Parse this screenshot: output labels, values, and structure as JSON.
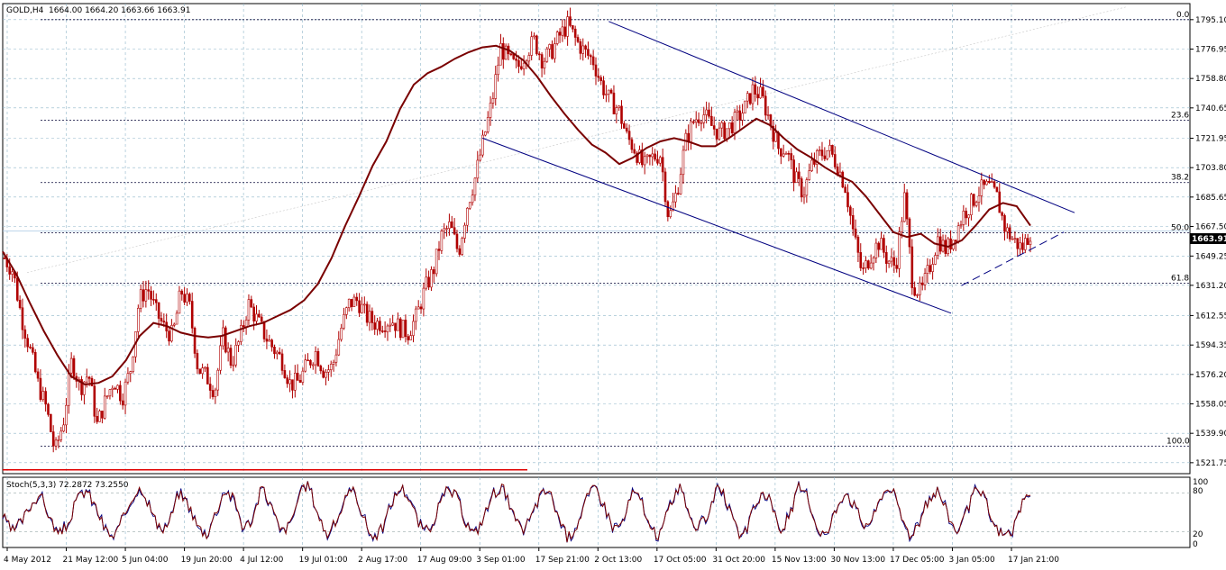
{
  "header": {
    "symbol": "GOLD,H4",
    "ohlc": "1664.00 1664.20 1663.66 1663.91"
  },
  "current_price_label": "1663.91",
  "indicator": {
    "label": "Stoch(5,3,3) 72.2872 73.2550",
    "levels": [
      "100",
      "80",
      "20",
      "0"
    ]
  },
  "colors": {
    "grid": "#8fb6c9",
    "candle": "#b00000",
    "ma": "#7a0000",
    "channel": "#000080",
    "fib": "#000033",
    "stoch_main": "#7a0000",
    "stoch_signal": "#000080",
    "rng_bar": "#e00000"
  },
  "chart_data": [
    {
      "type": "candlestick",
      "title": "GOLD,H4",
      "ylim": [
        1515,
        1805
      ],
      "yticks": [
        "1795.10",
        "1776.95",
        "1758.80",
        "1740.65",
        "1721.95",
        "1703.80",
        "1685.65",
        "1667.50",
        "1649.25",
        "1631.20",
        "1612.55",
        "1594.35",
        "1576.20",
        "1558.05",
        "1539.90",
        "1521.75"
      ],
      "xticks": [
        "4 May 2012",
        "21 May 12:00",
        "5 Jun 04:00",
        "19 Jun 20:00",
        "4 Jul 12:00",
        "19 Jul 01:00",
        "2 Aug 17:00",
        "17 Aug 09:00",
        "3 Sep 01:00",
        "17 Sep 21:00",
        "2 Oct 13:00",
        "17 Oct 05:00",
        "31 Oct 20:00",
        "15 Nov 13:00",
        "30 Nov 13:00",
        "17 Dec 05:00",
        "3 Jan 05:00",
        "17 Jan 21:00"
      ],
      "price_path": [
        1648,
        1640,
        1612,
        1592,
        1570,
        1555,
        1528,
        1547,
        1585,
        1568,
        1577,
        1545,
        1560,
        1573,
        1562,
        1580,
        1622,
        1630,
        1615,
        1605,
        1600,
        1628,
        1618,
        1580,
        1575,
        1566,
        1600,
        1583,
        1598,
        1620,
        1610,
        1600,
        1592,
        1585,
        1570,
        1572,
        1582,
        1590,
        1578,
        1581,
        1604,
        1620,
        1622,
        1612,
        1608,
        1608,
        1610,
        1605,
        1602,
        1612,
        1629,
        1640,
        1662,
        1668,
        1651,
        1680,
        1698,
        1722,
        1745,
        1778,
        1770,
        1765,
        1775,
        1782,
        1770,
        1775,
        1785,
        1792,
        1782,
        1775,
        1770,
        1755,
        1745,
        1740,
        1723,
        1715,
        1704,
        1710,
        1712,
        1672,
        1690,
        1720,
        1733,
        1738,
        1730,
        1725,
        1728,
        1733,
        1740,
        1752,
        1748,
        1733,
        1716,
        1715,
        1697,
        1688,
        1705,
        1712,
        1715,
        1706,
        1692,
        1662,
        1638,
        1650,
        1658,
        1647,
        1643,
        1686,
        1632,
        1626,
        1642,
        1660,
        1653,
        1662,
        1675,
        1682,
        1690,
        1692,
        1686,
        1666,
        1659,
        1654,
        1664
      ],
      "moving_average": [
        1652,
        1638,
        1620,
        1603,
        1588,
        1575,
        1570,
        1571,
        1575,
        1585,
        1600,
        1608,
        1606,
        1602,
        1600,
        1599,
        1600,
        1603,
        1606,
        1608,
        1612,
        1616,
        1622,
        1632,
        1648,
        1668,
        1686,
        1705,
        1720,
        1740,
        1755,
        1762,
        1766,
        1771,
        1775,
        1778,
        1779,
        1776,
        1770,
        1760,
        1748,
        1737,
        1727,
        1718,
        1713,
        1706,
        1710,
        1716,
        1720,
        1722,
        1720,
        1717,
        1717,
        1722,
        1728,
        1734,
        1730,
        1722,
        1715,
        1710,
        1704,
        1699,
        1695,
        1686,
        1675,
        1664,
        1661,
        1663,
        1657,
        1655,
        1659,
        1668,
        1678,
        1682,
        1680,
        1668
      ],
      "channel_upper": {
        "from": [
          "2 Oct 13:00",
          1794
        ],
        "to": [
          "17 Jan 21:00",
          1688
        ]
      },
      "channel_lower": {
        "from": [
          "3 Sep 01:00",
          1722
        ],
        "to": [
          "3 Jan 05:00",
          1614
        ]
      },
      "support_line": {
        "from": [
          "3 Jan 05:00",
          1631
        ],
        "to": [
          "17 Jan 21:00",
          1664
        ]
      },
      "fibonacci_levels": [
        {
          "label": "0.0",
          "price": 1795.1
        },
        {
          "label": "23.6",
          "price": 1733.0
        },
        {
          "label": "38.2",
          "price": 1694.6
        },
        {
          "label": "50.0",
          "price": 1663.6
        },
        {
          "label": "61.8",
          "price": 1632.5
        },
        {
          "label": "100.0",
          "price": 1532.0
        }
      ]
    },
    {
      "type": "line",
      "title": "Stoch(5,3,3) 72.2872 73.2550",
      "ylim": [
        0,
        100
      ],
      "yticks": [
        "100",
        "80",
        "20",
        "0"
      ],
      "levels": [
        80,
        20
      ],
      "series": [
        {
          "values": [
            45,
            20,
            35,
            60,
            80,
            45,
            15,
            30,
            70,
            85,
            60,
            25,
            10,
            40,
            75,
            90,
            55,
            20,
            35,
            80,
            65,
            30,
            15,
            50,
            85,
            70,
            25,
            40,
            90,
            60,
            20,
            30,
            75,
            95,
            50,
            15,
            35,
            70,
            85,
            40,
            10,
            25,
            65,
            90,
            70,
            30,
            20,
            55,
            85,
            75,
            35,
            15,
            45,
            80,
            90,
            50,
            20,
            40,
            75,
            85,
            45,
            10,
            30,
            70,
            90,
            60,
            25,
            35,
            80,
            70,
            20,
            15,
            60,
            90,
            55,
            25,
            40,
            85,
            75,
            30,
            10,
            50,
            80,
            65,
            20,
            45,
            90,
            70,
            25,
            15,
            55,
            85,
            60,
            30,
            40,
            80,
            90,
            45,
            15,
            35,
            70,
            85,
            50,
            20,
            45,
            80,
            75,
            30,
            15,
            20,
            60,
            75
          ]
        }
      ]
    }
  ]
}
